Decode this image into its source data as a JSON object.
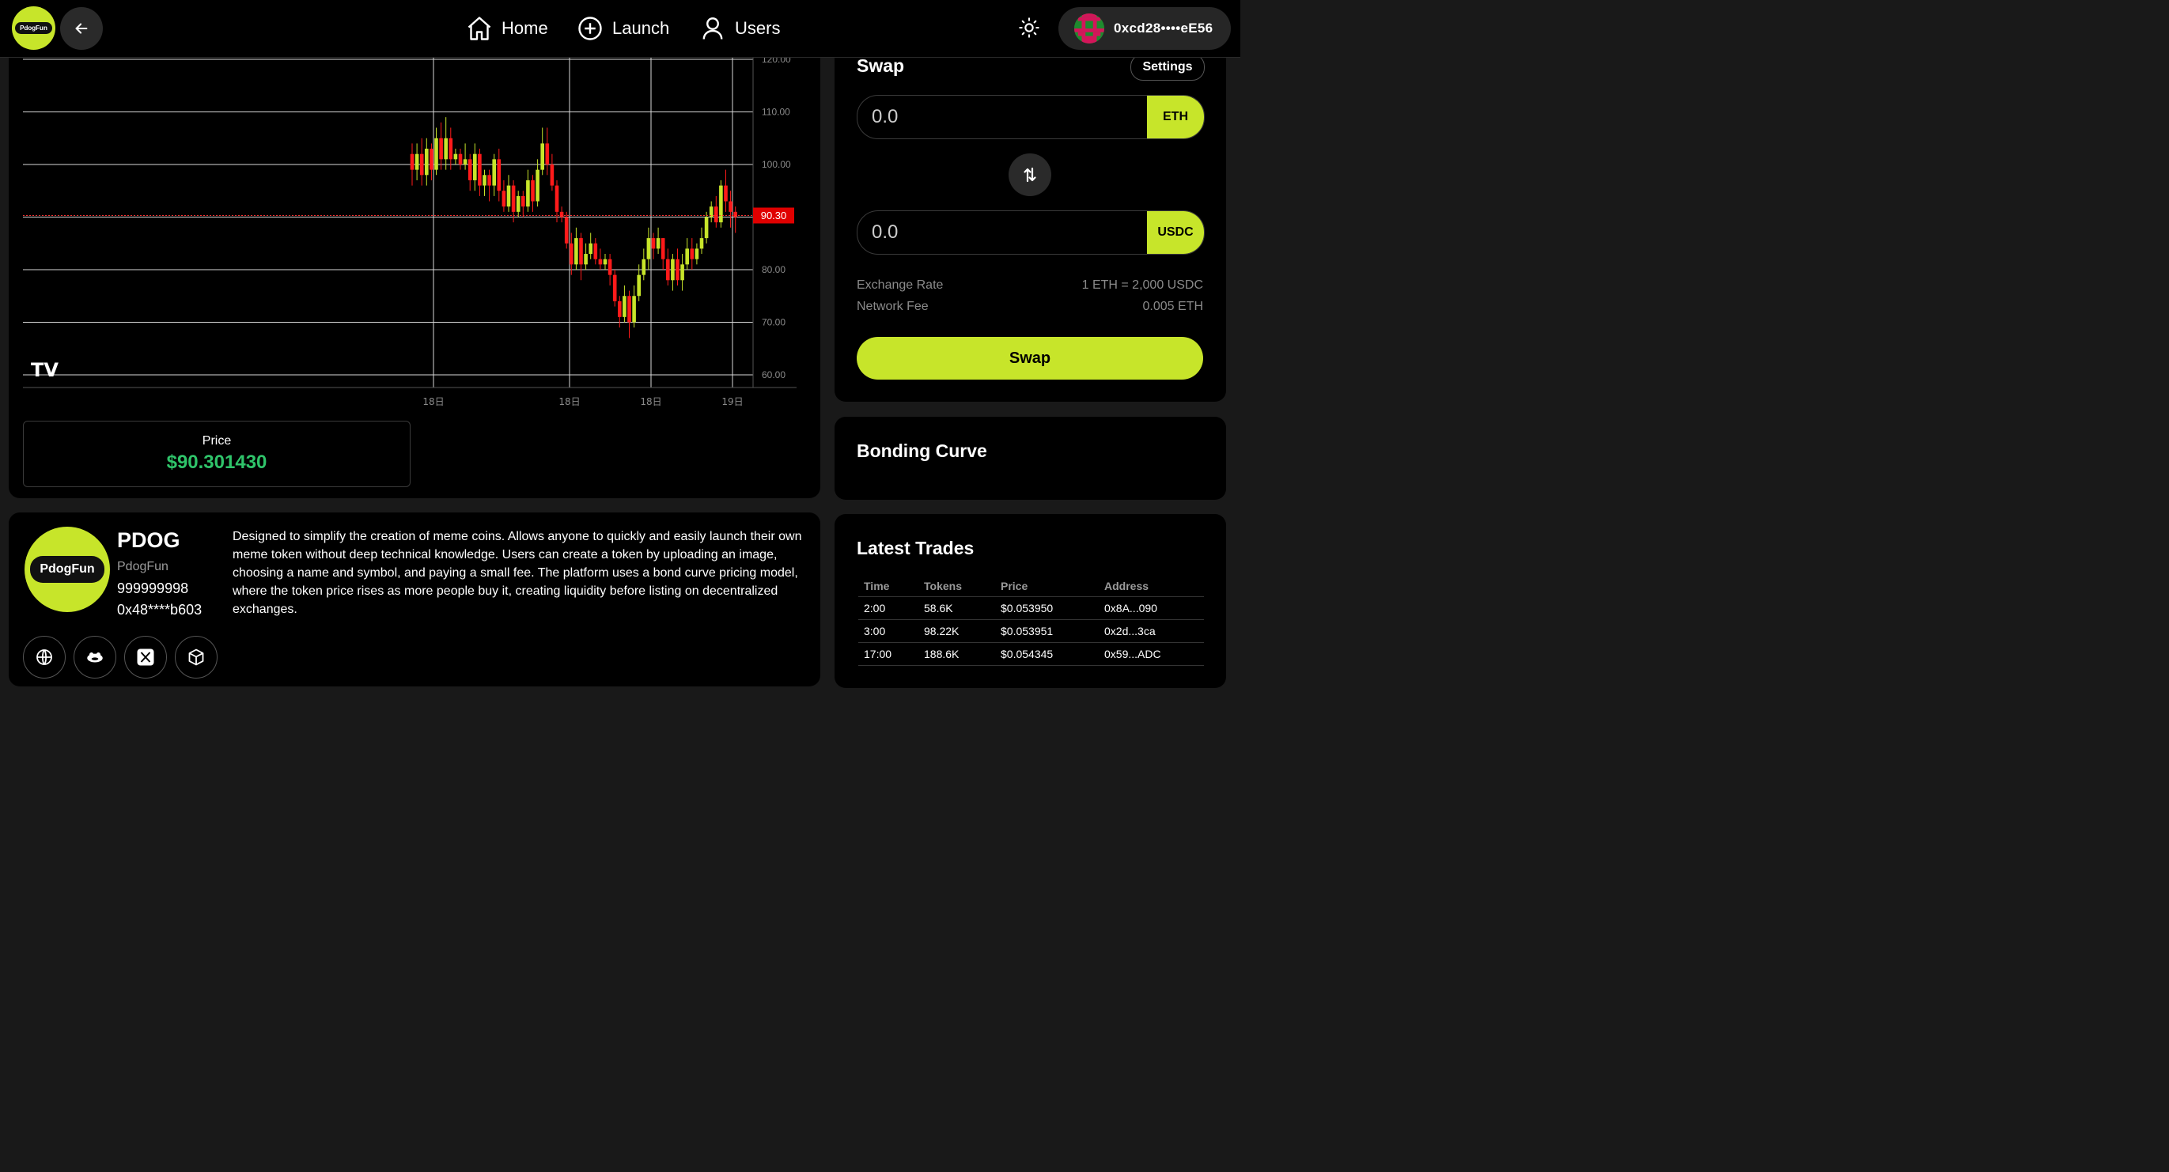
{
  "header": {
    "logo_text": "PdogFun",
    "nav": [
      {
        "label": "Home",
        "icon": "home-icon"
      },
      {
        "label": "Launch",
        "icon": "plus-circle-icon"
      },
      {
        "label": "Users",
        "icon": "user-icon"
      }
    ],
    "wallet_address": "0xcd28••••eE56"
  },
  "chart": {
    "y_ticks": [
      "120.00",
      "110.00",
      "100.00",
      "90.00",
      "80.00",
      "70.00",
      "60.00"
    ],
    "x_ticks": [
      "18日",
      "18日",
      "18日",
      "19日"
    ],
    "current_price_label": "90.30",
    "current_price": 90.3,
    "watermark": "TV",
    "price_label": "Price",
    "price_value": "$90.301430",
    "colors": {
      "up": "#c7e52a",
      "down": "#ff1a1a"
    }
  },
  "chart_data": {
    "type": "candlestick",
    "title": "",
    "xlabel": "",
    "ylabel": "",
    "ylim": [
      57.5,
      120
    ],
    "x_ticks": [
      "18日",
      "18日",
      "18日",
      "19日"
    ],
    "candles": [
      [
        102,
        99,
        104,
        96
      ],
      [
        99,
        102,
        104,
        97
      ],
      [
        102,
        98,
        105,
        96
      ],
      [
        98,
        103,
        105,
        96
      ],
      [
        103,
        99,
        104,
        97
      ],
      [
        99,
        105,
        107,
        98
      ],
      [
        105,
        101,
        108,
        99
      ],
      [
        101,
        105,
        109,
        99
      ],
      [
        105,
        101,
        107,
        99
      ],
      [
        101,
        102,
        103,
        100
      ],
      [
        102,
        100,
        103,
        99
      ],
      [
        100,
        101,
        104,
        99
      ],
      [
        101,
        97,
        102,
        95
      ],
      [
        97,
        102,
        104,
        95
      ],
      [
        102,
        96,
        103,
        94
      ],
      [
        96,
        98,
        99,
        94
      ],
      [
        98,
        96,
        99,
        93
      ],
      [
        96,
        101,
        102,
        94
      ],
      [
        101,
        95,
        103,
        93
      ],
      [
        95,
        92,
        97,
        91
      ],
      [
        92,
        96,
        98,
        91
      ],
      [
        96,
        91,
        97,
        89
      ],
      [
        91,
        94,
        95,
        90
      ],
      [
        94,
        92,
        95,
        90
      ],
      [
        92,
        97,
        99,
        91
      ],
      [
        97,
        93,
        98,
        91
      ],
      [
        93,
        99,
        101,
        92
      ],
      [
        99,
        104,
        107,
        98
      ],
      [
        104,
        100,
        107,
        98
      ],
      [
        100,
        96,
        102,
        95
      ],
      [
        96,
        91,
        97,
        89
      ],
      [
        91,
        90,
        92,
        89
      ],
      [
        90,
        85,
        91,
        84
      ],
      [
        85,
        81,
        87,
        79
      ],
      [
        81,
        86,
        88,
        80
      ],
      [
        86,
        81,
        87,
        78
      ],
      [
        81,
        83,
        85,
        80
      ],
      [
        83,
        85,
        87,
        82
      ],
      [
        85,
        82,
        86,
        81
      ],
      [
        82,
        81,
        84,
        80
      ],
      [
        81,
        82,
        83,
        80
      ],
      [
        82,
        79,
        83,
        77
      ],
      [
        79,
        74,
        80,
        73
      ],
      [
        74,
        71,
        75,
        69
      ],
      [
        71,
        75,
        77,
        70
      ],
      [
        75,
        70,
        76,
        67
      ],
      [
        70,
        75,
        77,
        69
      ],
      [
        75,
        79,
        81,
        74
      ],
      [
        79,
        82,
        84,
        78
      ],
      [
        82,
        86,
        88,
        80
      ],
      [
        86,
        84,
        87,
        82
      ],
      [
        84,
        86,
        88,
        83
      ],
      [
        86,
        82,
        86,
        80
      ],
      [
        82,
        78,
        84,
        77
      ],
      [
        78,
        82,
        83,
        76
      ],
      [
        82,
        78,
        84,
        77
      ],
      [
        78,
        81,
        83,
        76
      ],
      [
        81,
        84,
        86,
        80
      ],
      [
        84,
        82,
        86,
        80
      ],
      [
        82,
        84,
        85,
        81
      ],
      [
        84,
        86,
        88,
        83
      ],
      [
        86,
        90,
        91,
        85
      ],
      [
        90,
        92,
        93,
        89
      ],
      [
        92,
        89,
        94,
        88
      ],
      [
        89,
        96,
        97,
        88
      ],
      [
        96,
        93,
        99,
        91
      ],
      [
        93,
        91,
        95,
        88
      ],
      [
        91,
        90,
        92,
        87
      ]
    ]
  },
  "token": {
    "logo_text": "PdogFun",
    "name": "PDOG",
    "subtitle": "PdogFun",
    "supply": "999999998",
    "address": "0x48****b603",
    "description": "Designed to simplify the creation of meme coins. Allows anyone to quickly and easily launch their own meme token without deep technical knowledge. Users can create a token by uploading an image, choosing a name and symbol, and paying a small fee. The platform uses a bond curve pricing model, where the token price rises as more people buy it, creating liquidity before listing on decentralized exchanges.",
    "socials": [
      "globe-icon",
      "telegram-icon",
      "x-icon",
      "cube-icon"
    ]
  },
  "swap": {
    "title": "Swap",
    "settings_label": "Settings",
    "from": {
      "placeholder": "0.0",
      "token": "ETH"
    },
    "to": {
      "placeholder": "0.0",
      "token": "USDC"
    },
    "exchange_rate_label": "Exchange Rate",
    "exchange_rate_value": "1 ETH = 2,000 USDC",
    "network_fee_label": "Network Fee",
    "network_fee_value": "0.005 ETH",
    "button_label": "Swap"
  },
  "bonding": {
    "title": "Bonding Curve"
  },
  "trades": {
    "title": "Latest Trades",
    "columns": [
      "Time",
      "Tokens",
      "Price",
      "Address"
    ],
    "rows": [
      [
        "2:00",
        "58.6K",
        "$0.053950",
        "0x8A...090"
      ],
      [
        "3:00",
        "98.22K",
        "$0.053951",
        "0x2d...3ca"
      ],
      [
        "17:00",
        "188.6K",
        "$0.054345",
        "0x59...ADC"
      ]
    ]
  }
}
